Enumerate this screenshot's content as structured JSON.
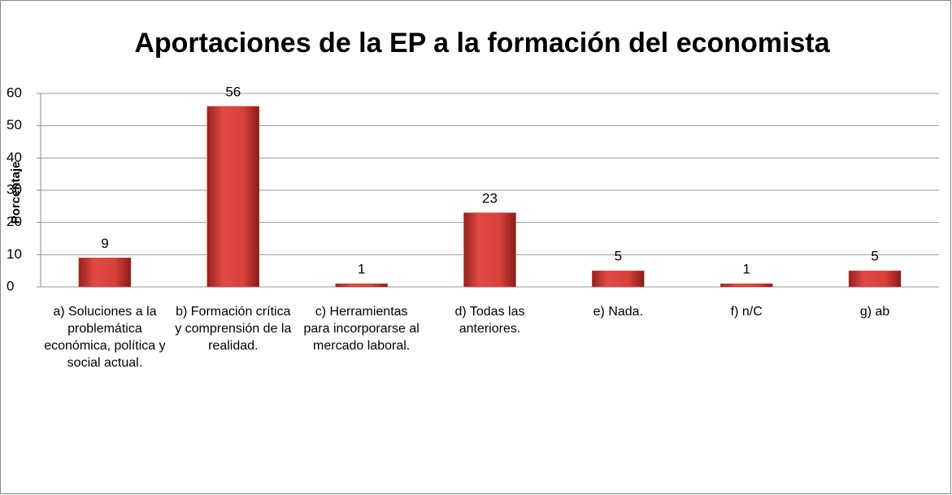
{
  "chart_data": {
    "type": "bar",
    "title": "Aportaciones de la EP a la formación del economista",
    "y_label": "Porcentaje",
    "categories": [
      "a) Soluciones a la problemática económica, política y social actual.",
      "b) Formación crítica y comprensión de la realidad.",
      "c) Herramientas para incorporarse al mercado laboral.",
      "d) Todas las anteriores.",
      "e) Nada.",
      "f) n/C",
      "g) ab"
    ],
    "values": [
      9,
      56,
      1,
      23,
      5,
      1,
      5
    ],
    "color": "#c0504d",
    "ylim": [
      0,
      60
    ],
    "yticks": [
      0,
      10,
      20,
      30,
      40,
      50,
      60
    ],
    "grid": true
  }
}
